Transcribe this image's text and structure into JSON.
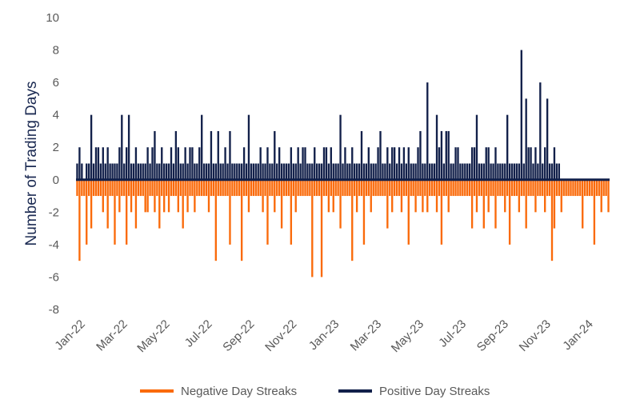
{
  "chart_data": {
    "type": "bar",
    "ylabel": "Number of Trading Days",
    "ylim": [
      -8,
      10
    ],
    "y_ticks": [
      10,
      8,
      6,
      4,
      2,
      0,
      -2,
      -4,
      -6,
      -8
    ],
    "x_tick_labels": [
      "Jan-22",
      "Mar-22",
      "May-22",
      "Jul-22",
      "Sep-22",
      "Nov-22",
      "Jan-23",
      "Mar-23",
      "May-23",
      "Jul-23",
      "Sep-23",
      "Nov-23",
      "Jan-24"
    ],
    "legend_position": "bottom",
    "colors": {
      "negative": "#fa6a0a",
      "positive": "#12204a",
      "zero_line": "#12204a"
    },
    "series": [
      {
        "name": "Negative Day Streaks",
        "values": [
          -1,
          -5,
          -1,
          -1,
          -4,
          -1,
          -3,
          -1,
          -1,
          -1,
          -1,
          -2,
          -1,
          -3,
          -1,
          -1,
          -4,
          -1,
          -2,
          -1,
          -1,
          -4,
          -1,
          -2,
          -1,
          -3,
          -1,
          -1,
          -1,
          -2,
          -2,
          -1,
          -1,
          -2,
          -1,
          -3,
          -1,
          -2,
          -1,
          -2,
          -1,
          -1,
          -1,
          -2,
          -1,
          -3,
          -1,
          -2,
          -1,
          -1,
          -2,
          -1,
          -1,
          -1,
          -1,
          -1,
          -2,
          -1,
          -1,
          -5,
          -1,
          -1,
          -1,
          -1,
          -1,
          -4,
          -1,
          -1,
          -1,
          -1,
          -5,
          -1,
          -1,
          -2,
          -1,
          -1,
          -1,
          -1,
          -1,
          -2,
          -1,
          -4,
          -1,
          -1,
          -2,
          -1,
          -1,
          -3,
          -1,
          -1,
          -1,
          -4,
          -1,
          -2,
          -1,
          -1,
          -1,
          -1,
          -1,
          -1,
          -6,
          -1,
          -1,
          -1,
          -6,
          -1,
          -1,
          -2,
          -1,
          -2,
          -1,
          -1,
          -3,
          -1,
          -1,
          -1,
          -1,
          -5,
          -1,
          -2,
          -1,
          -1,
          -4,
          -1,
          -1,
          -2,
          -1,
          -1,
          -1,
          -1,
          -1,
          -1,
          -3,
          -1,
          -2,
          -1,
          -1,
          -1,
          -2,
          -1,
          -1,
          -4,
          -1,
          -1,
          -2,
          -1,
          -1,
          -2,
          -1,
          -2,
          -1,
          -1,
          -1,
          -2,
          -1,
          -4,
          -1,
          -1,
          -2,
          -1,
          -1,
          -1,
          -1,
          -1,
          -1,
          -1,
          -1,
          -1,
          -3,
          -1,
          -2,
          -1,
          -1,
          -3,
          -1,
          -2,
          -1,
          -1,
          -3,
          -1,
          -1,
          -1,
          -2,
          -1,
          -4,
          -1,
          -1,
          -1,
          -2,
          -1,
          -1,
          -3,
          -1,
          -1,
          -1,
          -2,
          -1,
          -1,
          -1,
          -2,
          -1,
          -1,
          -5,
          -3,
          -1,
          -1,
          -2,
          -1,
          -1,
          -1,
          -1,
          -1,
          -1,
          -1,
          -1,
          -3,
          -1,
          -1,
          -1,
          -1,
          -4,
          -1,
          -1,
          -2,
          -1,
          -1,
          -2
        ]
      },
      {
        "name": "Positive Day Streaks",
        "values": [
          1,
          2,
          1,
          0,
          1,
          1,
          4,
          1,
          2,
          2,
          1,
          2,
          1,
          2,
          1,
          1,
          1,
          1,
          2,
          4,
          1,
          2,
          4,
          1,
          1,
          2,
          1,
          1,
          1,
          1,
          2,
          1,
          2,
          3,
          1,
          1,
          2,
          1,
          1,
          1,
          2,
          1,
          3,
          2,
          1,
          1,
          2,
          1,
          2,
          2,
          1,
          1,
          2,
          4,
          1,
          1,
          1,
          3,
          1,
          1,
          3,
          1,
          1,
          2,
          1,
          3,
          1,
          1,
          1,
          1,
          1,
          2,
          1,
          4,
          1,
          1,
          1,
          1,
          2,
          1,
          1,
          2,
          1,
          1,
          3,
          1,
          2,
          1,
          1,
          1,
          1,
          2,
          1,
          1,
          2,
          1,
          2,
          2,
          1,
          1,
          1,
          2,
          1,
          1,
          1,
          2,
          2,
          1,
          2,
          1,
          1,
          1,
          4,
          1,
          2,
          1,
          1,
          2,
          1,
          1,
          1,
          3,
          1,
          1,
          2,
          1,
          1,
          1,
          2,
          3,
          1,
          1,
          2,
          1,
          2,
          2,
          1,
          2,
          1,
          2,
          1,
          2,
          1,
          1,
          1,
          2,
          3,
          1,
          1,
          6,
          1,
          1,
          1,
          4,
          2,
          3,
          1,
          3,
          3,
          1,
          1,
          2,
          2,
          1,
          1,
          1,
          1,
          1,
          2,
          2,
          4,
          1,
          1,
          1,
          2,
          2,
          1,
          1,
          2,
          1,
          1,
          1,
          1,
          4,
          1,
          1,
          1,
          1,
          1,
          8,
          1,
          5,
          2,
          2,
          1,
          2,
          1,
          6,
          1,
          2,
          5,
          1,
          1,
          2,
          1,
          1
        ]
      }
    ]
  }
}
